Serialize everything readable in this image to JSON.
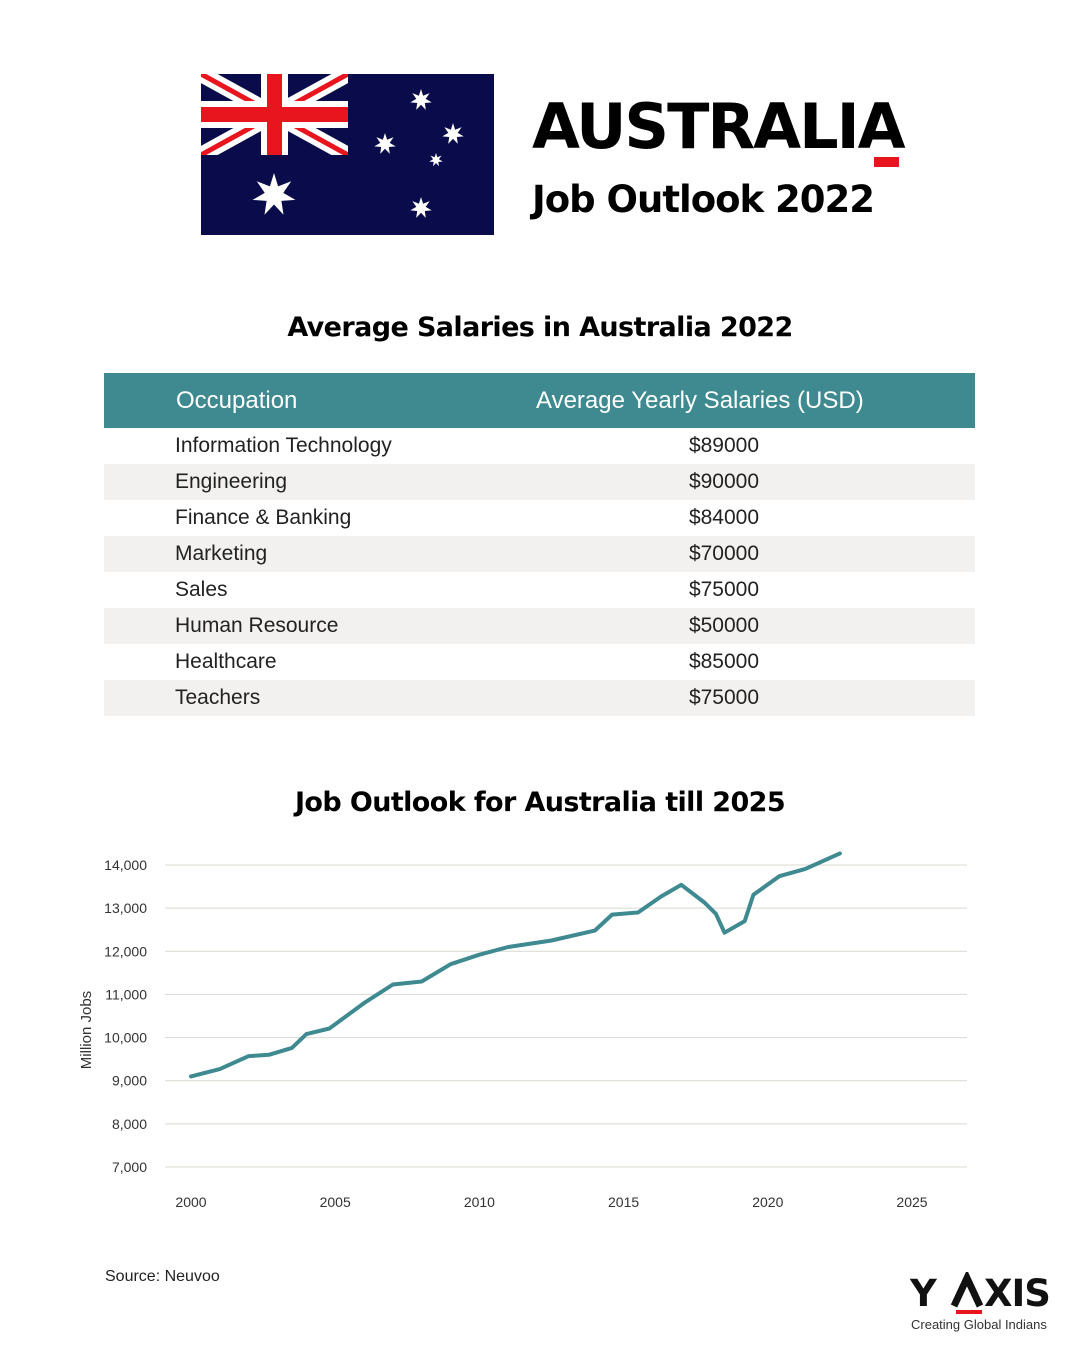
{
  "header": {
    "flag_icon": "australian-flag-icon",
    "title": "AUSTRALIA",
    "subtitle": "Job Outlook 2022",
    "accent_color": "#e8141e"
  },
  "salary_section": {
    "heading": "Average Salaries in Australia 2022",
    "header_color": "#3e8a90",
    "columns": [
      "Occupation",
      "Average Yearly Salaries (USD)"
    ],
    "rows": [
      {
        "occupation": "Information Technology",
        "salary": "$89000"
      },
      {
        "occupation": "Engineering",
        "salary": "$90000"
      },
      {
        "occupation": "Finance & Banking",
        "salary": "$84000"
      },
      {
        "occupation": "Marketing",
        "salary": "$70000"
      },
      {
        "occupation": "Sales",
        "salary": "$75000"
      },
      {
        "occupation": "Human Resource",
        "salary": "$50000"
      },
      {
        "occupation": "Healthcare",
        "salary": "$85000"
      },
      {
        "occupation": "Teachers",
        "salary": "$75000"
      }
    ]
  },
  "chart_section": {
    "heading": "Job Outlook for Australia till 2025"
  },
  "chart_data": {
    "type": "line",
    "title": "Job Outlook for Australia till 2025",
    "xlabel": "",
    "ylabel": "Million Jobs",
    "xlim": [
      2000,
      2025
    ],
    "ylim": [
      7000,
      14000
    ],
    "x_ticks": [
      "2000",
      "2005",
      "2010",
      "2015",
      "2020",
      "2025"
    ],
    "y_ticks": [
      "7,000",
      "8,000",
      "9,000",
      "10,000",
      "11,000",
      "12,000",
      "13,000",
      "14,000"
    ],
    "grid": true,
    "line_color": "#3e8a90",
    "series": [
      {
        "x": [
          2000,
          2001,
          2002,
          2002.7,
          2003.5,
          2004,
          2004.8,
          2006,
          2007,
          2008,
          2009,
          2010,
          2011,
          2012.5,
          2014,
          2014.6,
          2015.5,
          2016.3,
          2017,
          2017.8,
          2018.2,
          2018.5,
          2019.2,
          2019.5,
          2020.4,
          2021.3,
          2022.5
        ],
        "y": [
          9100,
          9270,
          9570,
          9600,
          9760,
          10080,
          10210,
          10800,
          11230,
          11300,
          11700,
          11920,
          12100,
          12250,
          12480,
          12850,
          12900,
          13270,
          13540,
          13130,
          12870,
          12430,
          12700,
          13310,
          13740,
          13910,
          14270
        ]
      }
    ]
  },
  "footer": {
    "source": "Source: Neuvoo",
    "logo_text": "Y AXIS",
    "tagline": "Creating Global Indians"
  }
}
